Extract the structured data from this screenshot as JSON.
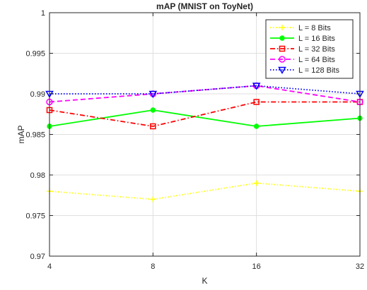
{
  "chart_data": {
    "type": "line",
    "title": "mAP (MNIST on ToyNet)",
    "xlabel": "K",
    "ylabel": "mAP",
    "categories": [
      "4",
      "8",
      "16",
      "32"
    ],
    "ylim": [
      0.97,
      1.0
    ],
    "yticks": [
      0.97,
      0.975,
      0.98,
      0.985,
      0.99,
      0.995,
      1.0
    ],
    "ytick_labels": [
      "0.97",
      "0.975",
      "0.98",
      "0.985",
      "0.99",
      "0.995",
      "1"
    ],
    "grid": true,
    "legend_position": "top-right",
    "series": [
      {
        "name": "L = 8 Bits",
        "values": [
          0.978,
          0.977,
          0.979,
          0.978
        ],
        "color": "#FFFF00",
        "marker": "plus",
        "dash": "dotted"
      },
      {
        "name": "L = 16 Bits",
        "values": [
          0.986,
          0.988,
          0.986,
          0.987
        ],
        "color": "#00FF00",
        "marker": "dot",
        "dash": "solid"
      },
      {
        "name": "L = 32 Bits",
        "values": [
          0.988,
          0.986,
          0.989,
          0.989
        ],
        "color": "#FF0000",
        "marker": "square",
        "dash": "dashdot"
      },
      {
        "name": "L = 64 Bits",
        "values": [
          0.989,
          0.99,
          0.991,
          0.989
        ],
        "color": "#FF00FF",
        "marker": "circle",
        "dash": "dashed"
      },
      {
        "name": "L = 128 Bits",
        "values": [
          0.99,
          0.99,
          0.991,
          0.99
        ],
        "color": "#0000FF",
        "marker": "triangle",
        "dash": "dotted"
      }
    ]
  }
}
